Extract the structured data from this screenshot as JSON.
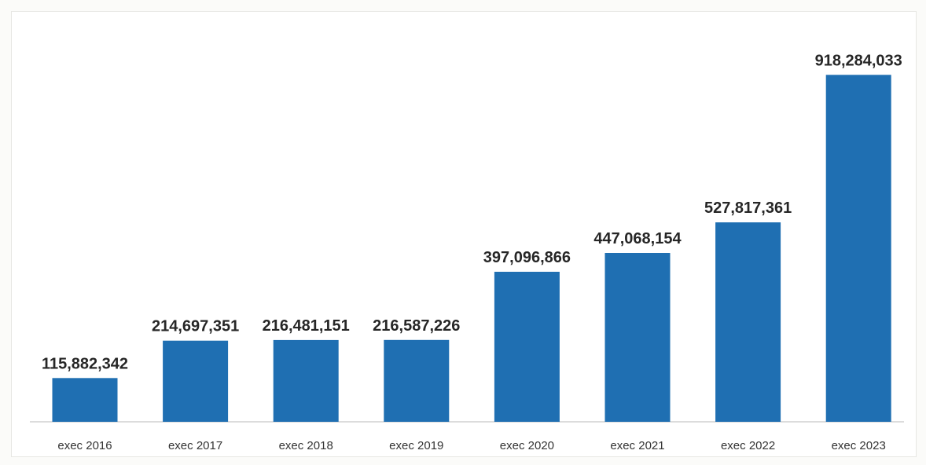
{
  "chart_data": {
    "type": "bar",
    "categories": [
      "exec 2016",
      "exec 2017",
      "exec 2018",
      "exec 2019",
      "exec 2020",
      "exec 2021",
      "exec 2022",
      "exec 2023"
    ],
    "values": [
      115882342,
      214697351,
      216481151,
      216587226,
      397096866,
      447068154,
      527817361,
      918284033
    ],
    "data_labels": [
      "115,882,342",
      "214,697,351",
      "216,481,151",
      "216,587,226",
      "397,096,866",
      "447,068,154",
      "527,817,361",
      "918,284,033"
    ],
    "title": "",
    "xlabel": "",
    "ylabel": "",
    "ylim": [
      0,
      1000000000
    ],
    "grid": false,
    "legend": "none",
    "bar_color": "#1f6fb2",
    "baseline_color": "#d0d0d0"
  }
}
